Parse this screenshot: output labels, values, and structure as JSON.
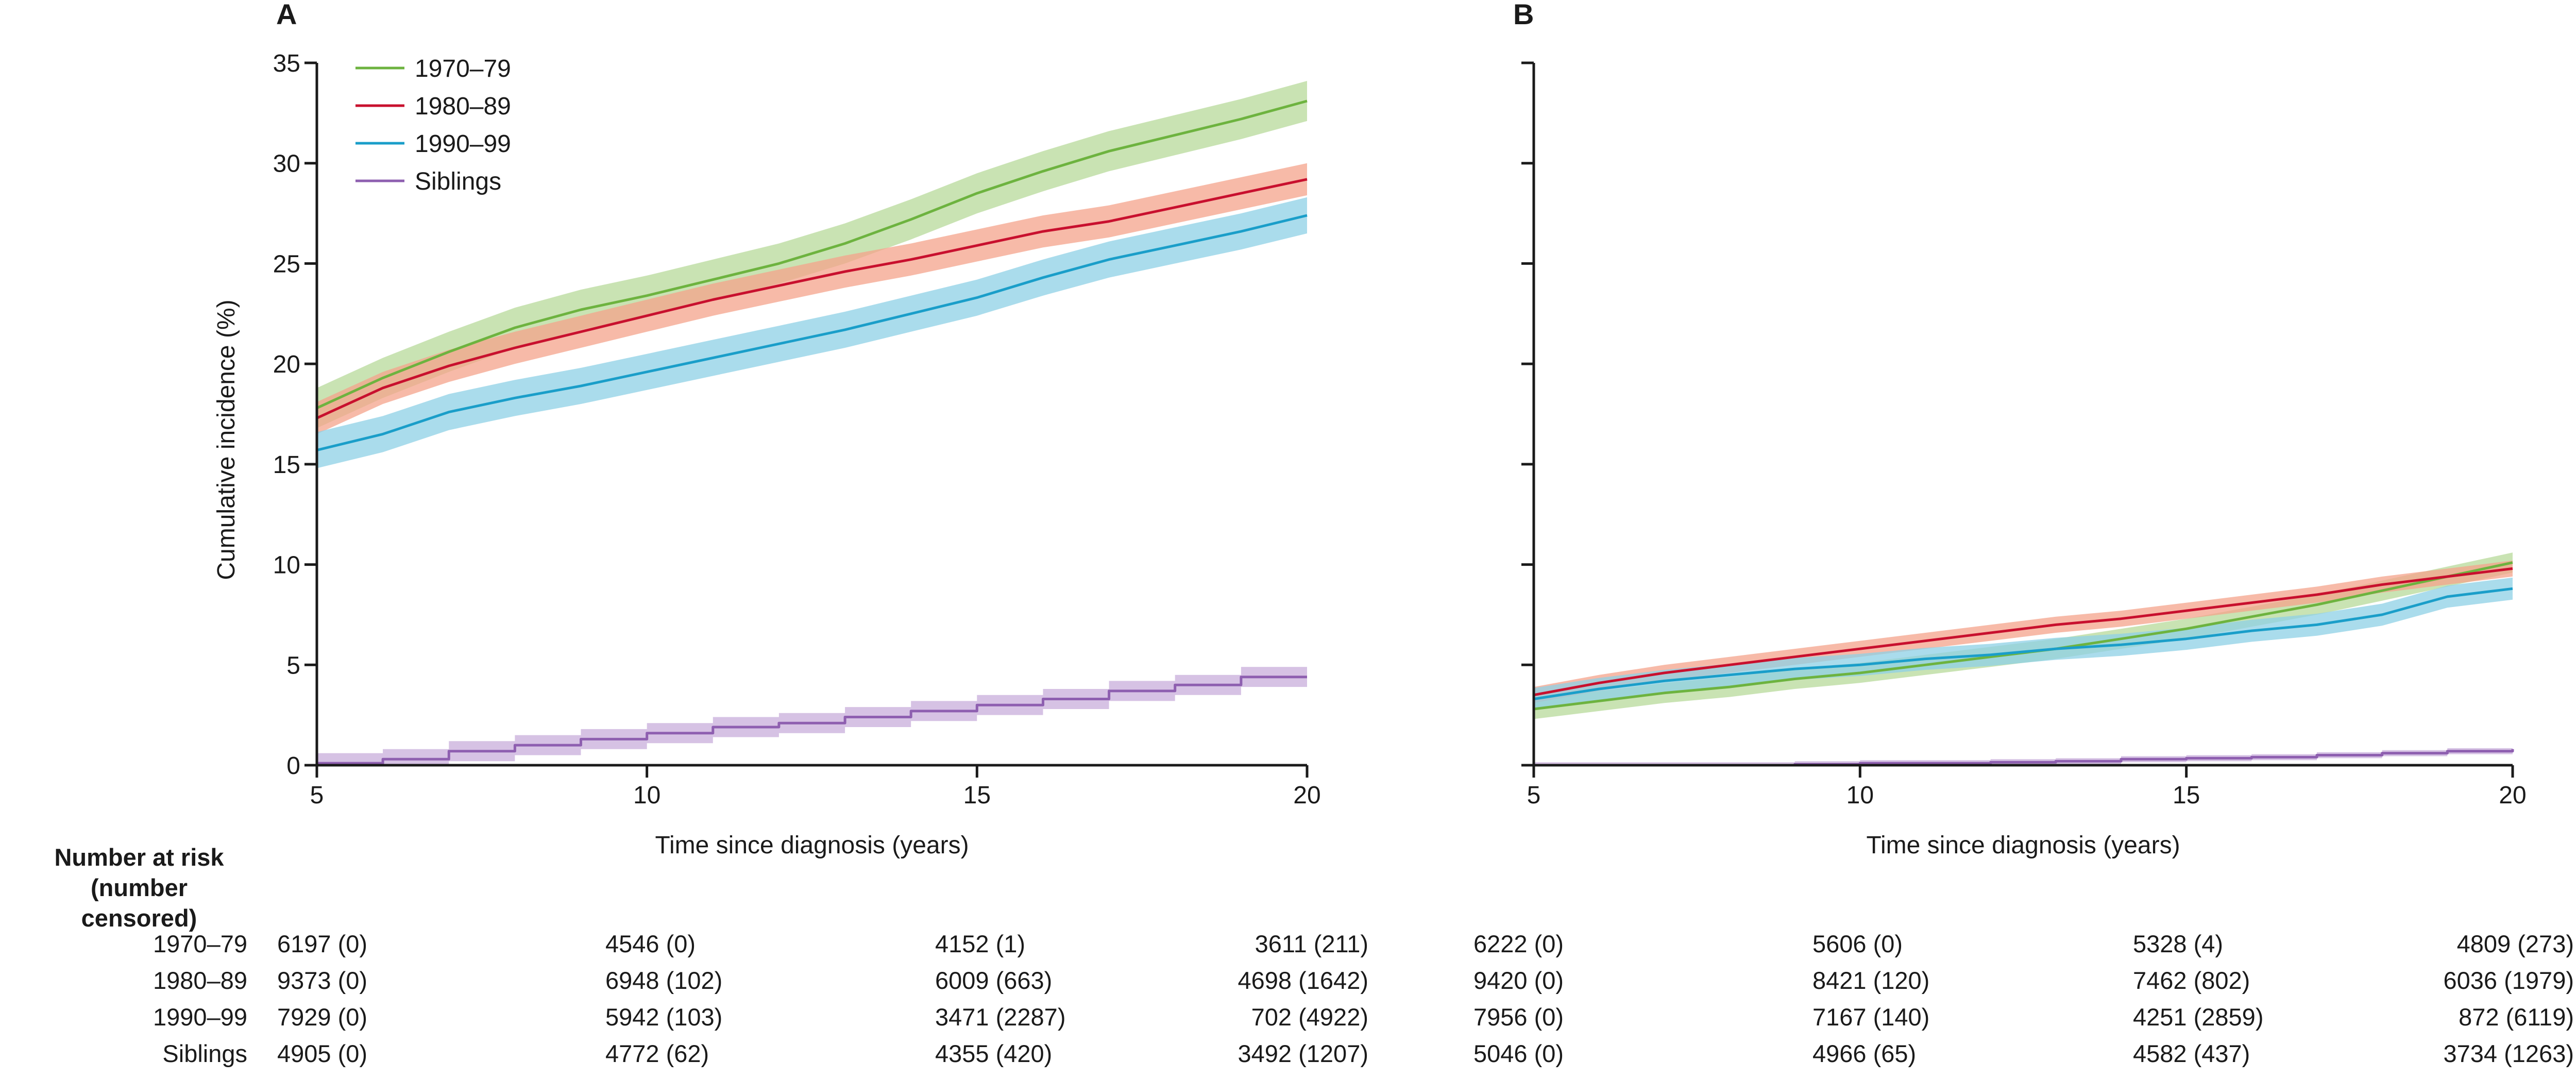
{
  "colors": {
    "1970-79": "#6db33f",
    "1980-89": "#c8102e",
    "1990-99": "#1a9ec9",
    "Siblings": "#8e5fb0",
    "band_1970-79": "#b7d99a",
    "band_1980-89": "#f4a38b",
    "band_1990-99": "#8dd0e6",
    "band_Siblings": "#c8aedb",
    "axis": "#1a1a1a"
  },
  "panels": {
    "A": {
      "letter": "A"
    },
    "B": {
      "letter": "B"
    }
  },
  "chart_data": [
    {
      "panel": "A",
      "type": "line",
      "xlabel": "Time since diagnosis (years)",
      "ylabel": "Cumulative incidence (%)",
      "xlim": [
        5,
        20
      ],
      "ylim": [
        0,
        35
      ],
      "xticks": [
        5,
        10,
        15,
        20
      ],
      "yticks": [
        0,
        5,
        10,
        15,
        20,
        25,
        30,
        35
      ],
      "legend": {
        "placement": "top-left",
        "entries": [
          "1970–79",
          "1980–89",
          "1990–99",
          "Siblings"
        ]
      },
      "x": [
        5,
        6,
        7,
        8,
        9,
        10,
        11,
        12,
        13,
        14,
        15,
        16,
        17,
        18,
        19,
        20
      ],
      "series": [
        {
          "name": "1970–79",
          "key": "1970-79",
          "values": [
            17.8,
            19.3,
            20.6,
            21.8,
            22.7,
            23.4,
            24.2,
            25.0,
            26.0,
            27.2,
            28.5,
            29.6,
            30.6,
            31.4,
            32.2,
            33.1
          ],
          "band": 1.0
        },
        {
          "name": "1980–89",
          "key": "1980-89",
          "values": [
            17.3,
            18.8,
            19.9,
            20.8,
            21.6,
            22.4,
            23.2,
            23.9,
            24.6,
            25.2,
            25.9,
            26.6,
            27.1,
            27.8,
            28.5,
            29.2
          ],
          "band": 0.8
        },
        {
          "name": "1990–99",
          "key": "1990-99",
          "values": [
            15.7,
            16.5,
            17.6,
            18.3,
            18.9,
            19.6,
            20.3,
            21.0,
            21.7,
            22.5,
            23.3,
            24.3,
            25.2,
            25.9,
            26.6,
            27.4
          ],
          "band": 0.9
        },
        {
          "name": "Siblings",
          "key": "Siblings",
          "values": [
            0.1,
            0.3,
            0.7,
            1.0,
            1.3,
            1.6,
            1.9,
            2.1,
            2.4,
            2.7,
            3.0,
            3.3,
            3.7,
            4.0,
            4.4,
            4.4
          ],
          "band": 0.5
        }
      ],
      "risk_table": {
        "1970-79": [
          "6197 (0)",
          "4546 (0)",
          "4152 (1)",
          "3611 (211)"
        ],
        "1980-89": [
          "9373 (0)",
          "6948 (102)",
          "6009 (663)",
          "4698 (1642)"
        ],
        "1990-99": [
          "7929 (0)",
          "5942 (103)",
          "3471 (2287)",
          "702 (4922)"
        ],
        "Siblings": [
          "4905 (0)",
          "4772 (62)",
          "4355 (420)",
          "3492 (1207)"
        ]
      }
    },
    {
      "panel": "B",
      "type": "line",
      "xlabel": "Time since diagnosis (years)",
      "ylabel": "",
      "xlim": [
        5,
        20
      ],
      "ylim": [
        0,
        35
      ],
      "xticks": [
        5,
        10,
        15,
        20
      ],
      "yticks": [
        0,
        5,
        10,
        15,
        20,
        25,
        30,
        35
      ],
      "x": [
        5,
        6,
        7,
        8,
        9,
        10,
        11,
        12,
        13,
        14,
        15,
        16,
        17,
        18,
        19,
        20
      ],
      "series": [
        {
          "name": "1970–79",
          "key": "1970-79",
          "values": [
            2.8,
            3.2,
            3.6,
            3.9,
            4.3,
            4.6,
            5.0,
            5.4,
            5.8,
            6.3,
            6.8,
            7.4,
            8.0,
            8.7,
            9.4,
            10.1
          ],
          "band": 0.5
        },
        {
          "name": "1980–89",
          "key": "1980-89",
          "values": [
            3.5,
            4.1,
            4.6,
            5.0,
            5.4,
            5.8,
            6.2,
            6.6,
            7.0,
            7.3,
            7.7,
            8.1,
            8.5,
            9.0,
            9.4,
            9.8
          ],
          "band": 0.4
        },
        {
          "name": "1990–99",
          "key": "1990-99",
          "values": [
            3.3,
            3.8,
            4.2,
            4.5,
            4.8,
            5.0,
            5.3,
            5.5,
            5.8,
            6.0,
            6.3,
            6.7,
            7.0,
            7.5,
            8.4,
            8.8
          ],
          "band": 0.55
        },
        {
          "name": "Siblings",
          "key": "Siblings",
          "values": [
            0.0,
            0.0,
            0.0,
            0.0,
            0.05,
            0.1,
            0.1,
            0.15,
            0.2,
            0.3,
            0.35,
            0.4,
            0.5,
            0.6,
            0.7,
            0.8
          ],
          "band": 0.15
        }
      ],
      "risk_table": {
        "1970-79": [
          "6222 (0)",
          "5606 (0)",
          "5328 (4)",
          "4809 (273)"
        ],
        "1980-89": [
          "9420 (0)",
          "8421 (120)",
          "7462 (802)",
          "6036 (1979)"
        ],
        "1990-99": [
          "7956 (0)",
          "7167 (140)",
          "4251 (2859)",
          "872 (6119)"
        ],
        "Siblings": [
          "5046 (0)",
          "4966 (65)",
          "4582 (437)",
          "3734 (1263)"
        ]
      }
    }
  ],
  "risk_table_header": {
    "line1": "Number at risk",
    "line2": "(number censored)"
  },
  "risk_row_labels": {
    "1970-79": "1970–79",
    "1980-89": "1980–89",
    "1990-99": "1990–99",
    "Siblings": "Siblings"
  }
}
